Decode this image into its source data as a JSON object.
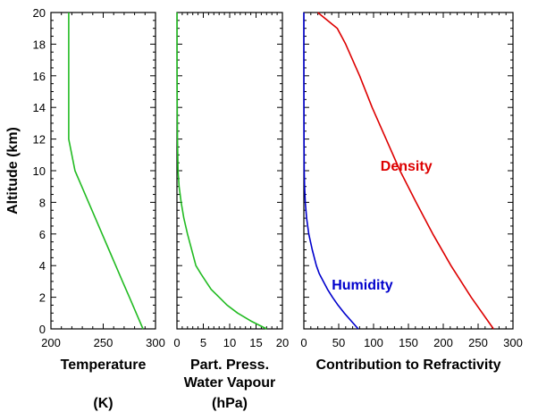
{
  "chart_data": [
    {
      "type": "line",
      "ylabel": "Altitude (km)",
      "xlabel_lines": [
        "Temperature",
        "",
        "(K)"
      ],
      "xlim": [
        200,
        300
      ],
      "ylim": [
        0,
        20
      ],
      "xticks": [
        200,
        250,
        300
      ],
      "yticks": [
        0,
        2,
        4,
        6,
        8,
        10,
        12,
        14,
        16,
        18,
        20
      ],
      "series": [
        {
          "color": "#22bb22",
          "points": [
            [
              288,
              0
            ],
            [
              281.5,
              1
            ],
            [
              275,
              2
            ],
            [
              268.5,
              3
            ],
            [
              262,
              4
            ],
            [
              255.5,
              5
            ],
            [
              249,
              6
            ],
            [
              242.5,
              7
            ],
            [
              236,
              8
            ],
            [
              229.5,
              9
            ],
            [
              223,
              10
            ],
            [
              220,
              11
            ],
            [
              217,
              12
            ],
            [
              217,
              14
            ],
            [
              217,
              16
            ],
            [
              217,
              18
            ],
            [
              217,
              20
            ]
          ]
        }
      ],
      "annotations": []
    },
    {
      "type": "line",
      "xlabel_lines": [
        "Part. Press.",
        "Water Vapour",
        "(hPa)"
      ],
      "xlim": [
        0,
        20
      ],
      "ylim": [
        0,
        20
      ],
      "xticks": [
        0,
        5,
        10,
        15,
        20
      ],
      "series": [
        {
          "color": "#22bb22",
          "points": [
            [
              17,
              0
            ],
            [
              14,
              0.5
            ],
            [
              11.5,
              1
            ],
            [
              9.5,
              1.5
            ],
            [
              8,
              2
            ],
            [
              6.5,
              2.5
            ],
            [
              5.5,
              3
            ],
            [
              4.5,
              3.5
            ],
            [
              3.6,
              4
            ],
            [
              2.8,
              5
            ],
            [
              2,
              6
            ],
            [
              1.3,
              7
            ],
            [
              0.8,
              8
            ],
            [
              0.4,
              9
            ],
            [
              0.2,
              10
            ],
            [
              0.1,
              12
            ],
            [
              0.05,
              14
            ],
            [
              0.02,
              17
            ],
            [
              0.01,
              20
            ]
          ]
        }
      ],
      "annotations": []
    },
    {
      "type": "line",
      "xlabel_lines": [
        "Contribution to Refractivity"
      ],
      "xlim": [
        0,
        300
      ],
      "ylim": [
        0,
        20
      ],
      "xticks": [
        0,
        50,
        100,
        150,
        200,
        250,
        300
      ],
      "series": [
        {
          "color": "#dd0000",
          "points": [
            [
              272,
              0
            ],
            [
              240,
              2
            ],
            [
              211,
              4
            ],
            [
              185,
              6
            ],
            [
              161,
              8
            ],
            [
              138,
              10
            ],
            [
              118,
              12
            ],
            [
              98,
              14
            ],
            [
              80,
              16
            ],
            [
              60,
              18
            ],
            [
              48,
              19
            ],
            [
              20,
              20
            ]
          ]
        },
        {
          "color": "#0000cc",
          "points": [
            [
              78,
              0
            ],
            [
              68,
              0.5
            ],
            [
              58,
              1
            ],
            [
              49,
              1.5
            ],
            [
              41,
              2
            ],
            [
              34,
              2.5
            ],
            [
              28,
              3
            ],
            [
              22,
              3.5
            ],
            [
              18,
              4
            ],
            [
              12,
              5
            ],
            [
              7,
              6
            ],
            [
              4,
              7
            ],
            [
              2,
              8
            ],
            [
              1,
              9
            ],
            [
              0.5,
              10
            ],
            [
              0.2,
              12
            ],
            [
              0.1,
              14
            ],
            [
              0.05,
              17
            ],
            [
              0.02,
              20
            ]
          ]
        }
      ],
      "annotations": [
        {
          "text": "Density",
          "x": 110,
          "y": 10,
          "color": "#dd0000"
        },
        {
          "text": "Humidity",
          "x": 40,
          "y": 2.5,
          "color": "#0000cc"
        }
      ]
    }
  ]
}
